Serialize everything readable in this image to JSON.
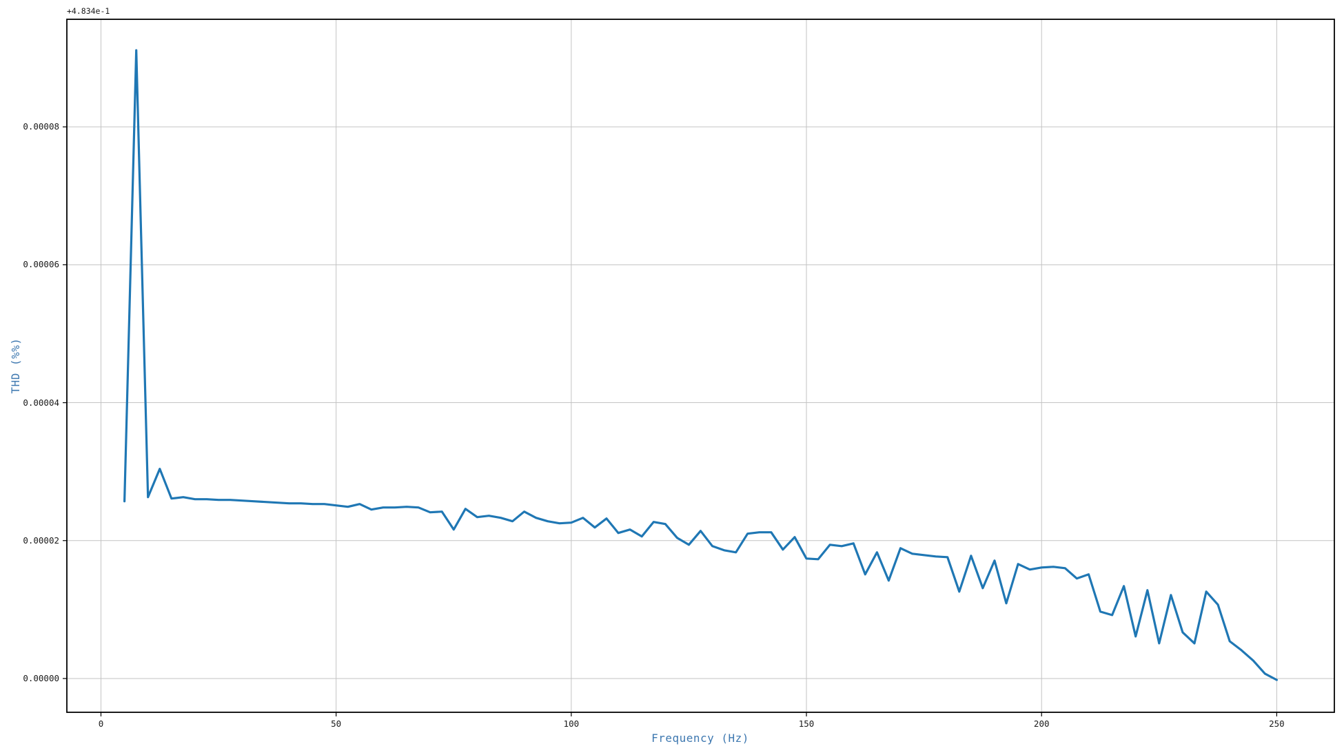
{
  "chart_data": {
    "type": "line",
    "title": "",
    "xlabel": "Frequency (Hz)",
    "ylabel": "THD (%%)",
    "y_axis_offset_label": "+4.834e-1",
    "legend": null,
    "grid": true,
    "xlim": [
      -7.25,
      262.25
    ],
    "ylim": [
      -4.9e-06,
      9.56e-05
    ],
    "xticks": [
      0,
      50,
      100,
      150,
      200,
      250
    ],
    "xtick_labels": [
      "0",
      "50",
      "100",
      "150",
      "200",
      "250"
    ],
    "yticks": [
      0,
      2e-05,
      4e-05,
      6e-05,
      8e-05
    ],
    "ytick_labels": [
      "0.00000",
      "0.00002",
      "0.00004",
      "0.00006",
      "0.00008"
    ],
    "line_color": "#1f77b4",
    "axis_label_color": "#3e78b0",
    "grid_color": "#c3c3c3",
    "spine_color": "#000000",
    "x": [
      5,
      7.5,
      10,
      12.5,
      15,
      17.5,
      20,
      22.5,
      25,
      27.5,
      30,
      32.5,
      35,
      37.5,
      40,
      42.5,
      45,
      47.5,
      50,
      52.5,
      55,
      57.5,
      60,
      62.5,
      65,
      67.5,
      70,
      72.5,
      75,
      77.5,
      80,
      82.5,
      85,
      87.5,
      90,
      92.5,
      95,
      97.5,
      100,
      102.5,
      105,
      107.5,
      110,
      112.5,
      115,
      117.5,
      120,
      122.5,
      125,
      127.5,
      130,
      132.5,
      135,
      137.5,
      140,
      142.5,
      145,
      147.5,
      150,
      152.5,
      155,
      157.5,
      160,
      162.5,
      165,
      167.5,
      170,
      172.5,
      175,
      177.5,
      180,
      182.5,
      185,
      187.5,
      190,
      192.5,
      195,
      197.5,
      200,
      202.5,
      205,
      207.5,
      210,
      212.5,
      215,
      217.5,
      220,
      222.5,
      225,
      227.5,
      230,
      232.5,
      235,
      237.5,
      240,
      242.5,
      245,
      247.5,
      250
    ],
    "y": [
      2.57e-05,
      9.11e-05,
      2.63e-05,
      3.04e-05,
      2.61e-05,
      2.63e-05,
      2.6e-05,
      2.6e-05,
      2.59e-05,
      2.59e-05,
      2.58e-05,
      2.57e-05,
      2.56e-05,
      2.55e-05,
      2.54e-05,
      2.54e-05,
      2.53e-05,
      2.53e-05,
      2.51e-05,
      2.49e-05,
      2.53e-05,
      2.45e-05,
      2.48e-05,
      2.48e-05,
      2.49e-05,
      2.48e-05,
      2.41e-05,
      2.42e-05,
      2.16e-05,
      2.46e-05,
      2.34e-05,
      2.36e-05,
      2.33e-05,
      2.28e-05,
      2.42e-05,
      2.33e-05,
      2.28e-05,
      2.25e-05,
      2.26e-05,
      2.33e-05,
      2.19e-05,
      2.32e-05,
      2.11e-05,
      2.16e-05,
      2.06e-05,
      2.27e-05,
      2.24e-05,
      2.04e-05,
      1.94e-05,
      2.14e-05,
      1.92e-05,
      1.86e-05,
      1.83e-05,
      2.1e-05,
      2.12e-05,
      2.12e-05,
      1.87e-05,
      2.05e-05,
      1.74e-05,
      1.73e-05,
      1.94e-05,
      1.92e-05,
      1.96e-05,
      1.51e-05,
      1.83e-05,
      1.42e-05,
      1.89e-05,
      1.81e-05,
      1.79e-05,
      1.77e-05,
      1.76e-05,
      1.26e-05,
      1.78e-05,
      1.31e-05,
      1.71e-05,
      1.09e-05,
      1.66e-05,
      1.58e-05,
      1.61e-05,
      1.62e-05,
      1.6e-05,
      1.45e-05,
      1.51e-05,
      9.7e-06,
      9.2e-06,
      1.34e-05,
      6.1e-06,
      1.28e-05,
      5.1e-06,
      1.21e-05,
      6.7e-06,
      5.1e-06,
      1.26e-05,
      1.07e-05,
      5.4e-06,
      4.1e-06,
      2.6e-06,
      7e-07,
      -2e-07
    ]
  },
  "layout_note": "single matplotlib-style line plot, all four spines, light gray grid"
}
